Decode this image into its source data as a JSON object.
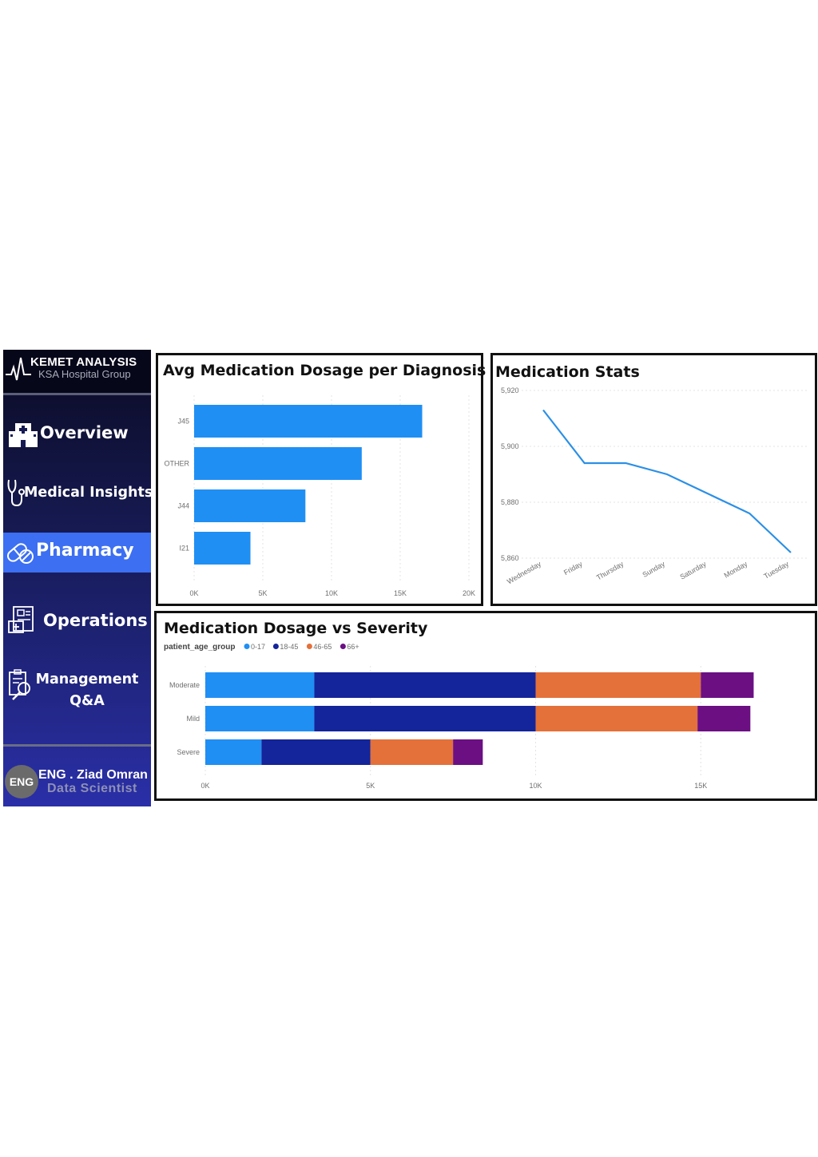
{
  "brand": {
    "title": "KEMET ANALYSIS",
    "subtitle": "KSA Hospital Group"
  },
  "nav": {
    "overview": "Overview",
    "medical": "Medical Insights",
    "pharmacy": "Pharmacy",
    "operations": "Operations",
    "management": "Management Q&A"
  },
  "author": {
    "avatar": "ENG",
    "name": "ENG . Ziad Omran",
    "role": "Data Scientist"
  },
  "colors": {
    "accent": "#3c6ff2",
    "bar": "#1f8ff4",
    "line": "#2b8fe6"
  },
  "chart_data": [
    {
      "type": "bar",
      "title": "Avg Medication Dosage per Diagnosis",
      "categories": [
        "J45",
        "OTHER",
        "J44",
        "I21"
      ],
      "values": [
        16600,
        12200,
        8100,
        4100
      ],
      "xlim": [
        0,
        20000
      ],
      "xticks": [
        "0K",
        "5K",
        "10K",
        "15K",
        "20K"
      ],
      "color": "#1f8ff4"
    },
    {
      "type": "line",
      "title": "Medication Stats",
      "categories": [
        "Wednesday",
        "Friday",
        "Thursday",
        "Sunday",
        "Saturday",
        "Monday",
        "Tuesday"
      ],
      "values": [
        5913,
        5894,
        5894,
        5890,
        5883,
        5876,
        5862
      ],
      "ylim": [
        5860,
        5920
      ],
      "yticks": [
        "5,920",
        "5,900",
        "5,880",
        "5,860"
      ],
      "color": "#2b8fe6"
    },
    {
      "type": "bar",
      "title": "Medication Dosage vs Severity",
      "legend_title": "patient_age_group",
      "categories": [
        "Moderate",
        "Mild",
        "Severe"
      ],
      "series": [
        {
          "name": "0-17",
          "color": "#1f8ff4",
          "values": [
            3300,
            3300,
            1700
          ]
        },
        {
          "name": "18-45",
          "color": "#14249a",
          "values": [
            6700,
            6700,
            3300
          ]
        },
        {
          "name": "46-65",
          "color": "#e4703a",
          "values": [
            5000,
            4900,
            2500
          ]
        },
        {
          "name": "66+",
          "color": "#6b0f83",
          "values": [
            1600,
            1600,
            900
          ]
        }
      ],
      "xlim": [
        0,
        17000
      ],
      "xticks": [
        "0K",
        "5K",
        "10K",
        "15K"
      ]
    }
  ]
}
